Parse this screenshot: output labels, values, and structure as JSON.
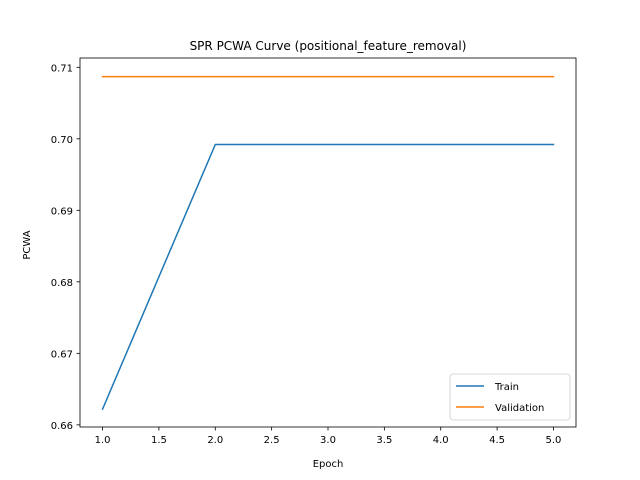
{
  "chart_data": {
    "type": "line",
    "title": "SPR PCWA Curve (positional_feature_removal)",
    "xlabel": "Epoch",
    "ylabel": "PCWA",
    "x": [
      1,
      2,
      3,
      4,
      5
    ],
    "xlim": [
      0.8,
      5.2
    ],
    "ylim": [
      0.6597,
      0.7113
    ],
    "xticks": [
      "1.0",
      "1.5",
      "2.0",
      "2.5",
      "3.0",
      "3.5",
      "4.0",
      "4.5",
      "5.0"
    ],
    "yticks": [
      "0.66",
      "0.67",
      "0.68",
      "0.69",
      "0.70",
      "0.71"
    ],
    "grid": false,
    "legend_position": "lower-right",
    "series": [
      {
        "name": "Train",
        "color": "#1f77b4",
        "values": [
          0.6622,
          0.6992,
          0.6992,
          0.6992,
          0.6992
        ]
      },
      {
        "name": "Validation",
        "color": "#ff7f0e",
        "values": [
          0.7087,
          0.7087,
          0.7087,
          0.7087,
          0.7087
        ]
      }
    ]
  }
}
